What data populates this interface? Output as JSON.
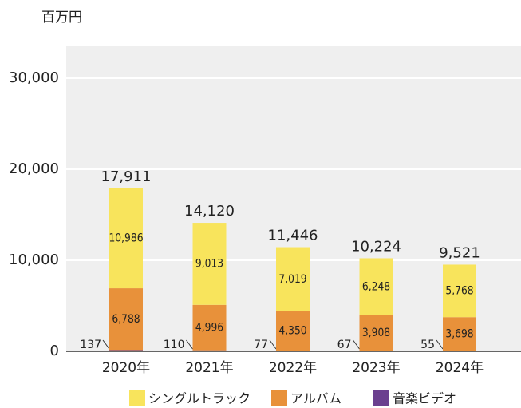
{
  "chart_data": {
    "type": "stacked_bar",
    "y_unit": "百万円",
    "categories": [
      "2020年",
      "2021年",
      "2022年",
      "2023年",
      "2024年"
    ],
    "series": [
      {
        "name": "音楽ビデオ",
        "color": "#6b3f8f",
        "values": [
          137,
          110,
          77,
          67,
          55
        ]
      },
      {
        "name": "アルバム",
        "color": "#e8913a",
        "values": [
          6788,
          4996,
          4350,
          3908,
          3698
        ],
        "value_labels": [
          "6,788",
          "4,996",
          "4,350",
          "3,908",
          "3,698"
        ]
      },
      {
        "name": "シングルトラック",
        "color": "#f8e45c",
        "values": [
          10986,
          9013,
          7019,
          6248,
          5768
        ],
        "value_labels": [
          "10,986",
          "9,013",
          "7,019",
          "6,248",
          "5,768"
        ]
      }
    ],
    "totals": {
      "values": [
        17911,
        14120,
        11446,
        10224,
        9521
      ],
      "value_labels": [
        "17,911",
        "14,120",
        "11,446",
        "10,224",
        "9,521"
      ]
    },
    "ylim": [
      0,
      33600
    ],
    "yticks": [
      0,
      {
        "value": 10000,
        "label": "10,000"
      },
      {
        "value": 20000,
        "label": "20,000"
      },
      {
        "value": 30000,
        "label": "30,000"
      }
    ],
    "grid": true,
    "legend": "bottom"
  }
}
